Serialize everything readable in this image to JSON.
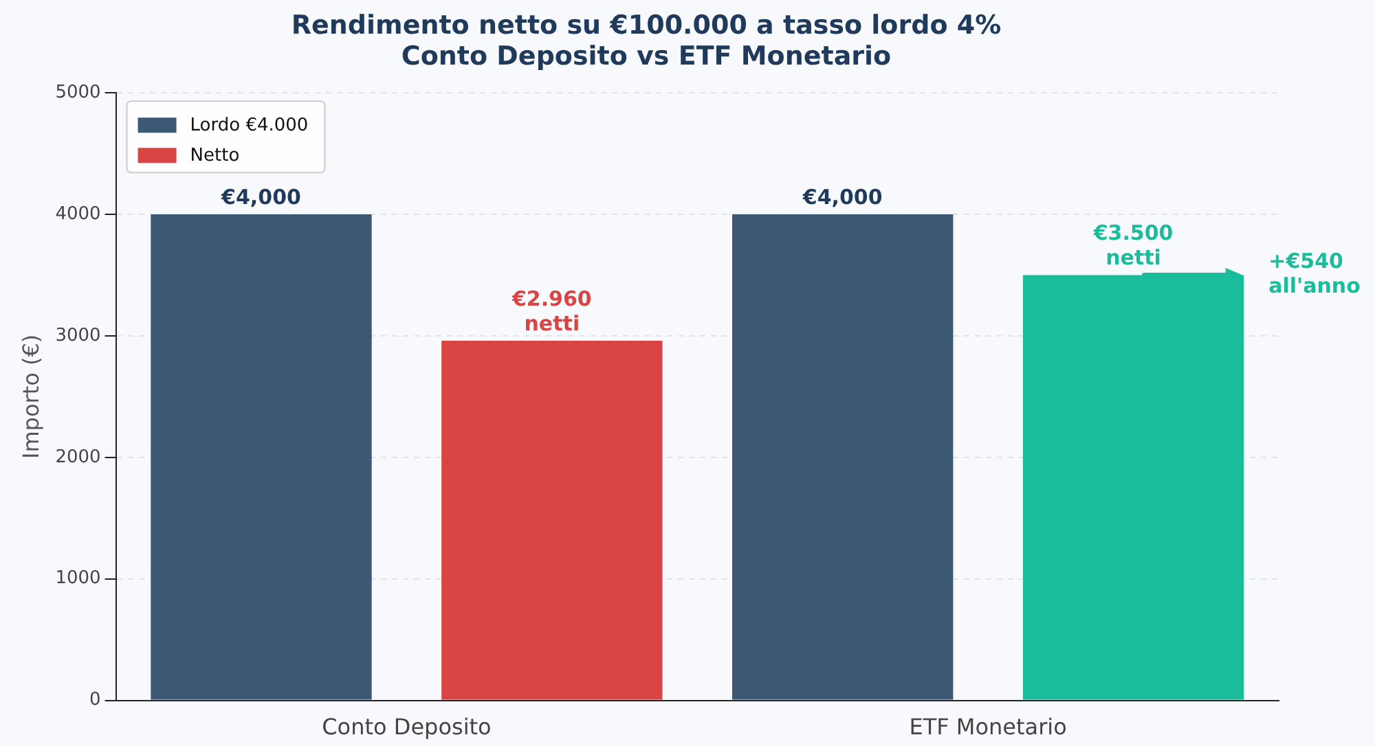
{
  "chart_data": {
    "type": "bar",
    "title": "Rendimento netto su €100.000 a tasso lordo 4%\nConto Deposito vs ETF Monetario",
    "ylabel": "Importo (€)",
    "categories": [
      "Conto Deposito",
      "ETF Monetario"
    ],
    "series": [
      {
        "name": "Lordo €4.000",
        "color": "#3d5875",
        "values": [
          4000,
          4000
        ],
        "value_labels": [
          "€4,000",
          "€4,000"
        ]
      },
      {
        "name": "Netto",
        "color": "#d94444",
        "colors": [
          "#d94444",
          "#1abc9c"
        ],
        "values": [
          2960,
          3500
        ]
      }
    ],
    "ylim": [
      0,
      5000
    ],
    "yticks": [
      0,
      1000,
      2000,
      3000,
      4000,
      5000
    ],
    "grid": "y",
    "legend": "top left",
    "annotations": [
      "€2.960\nnetti",
      "€3.500\nnetti",
      "+€540\nall'anno"
    ]
  }
}
